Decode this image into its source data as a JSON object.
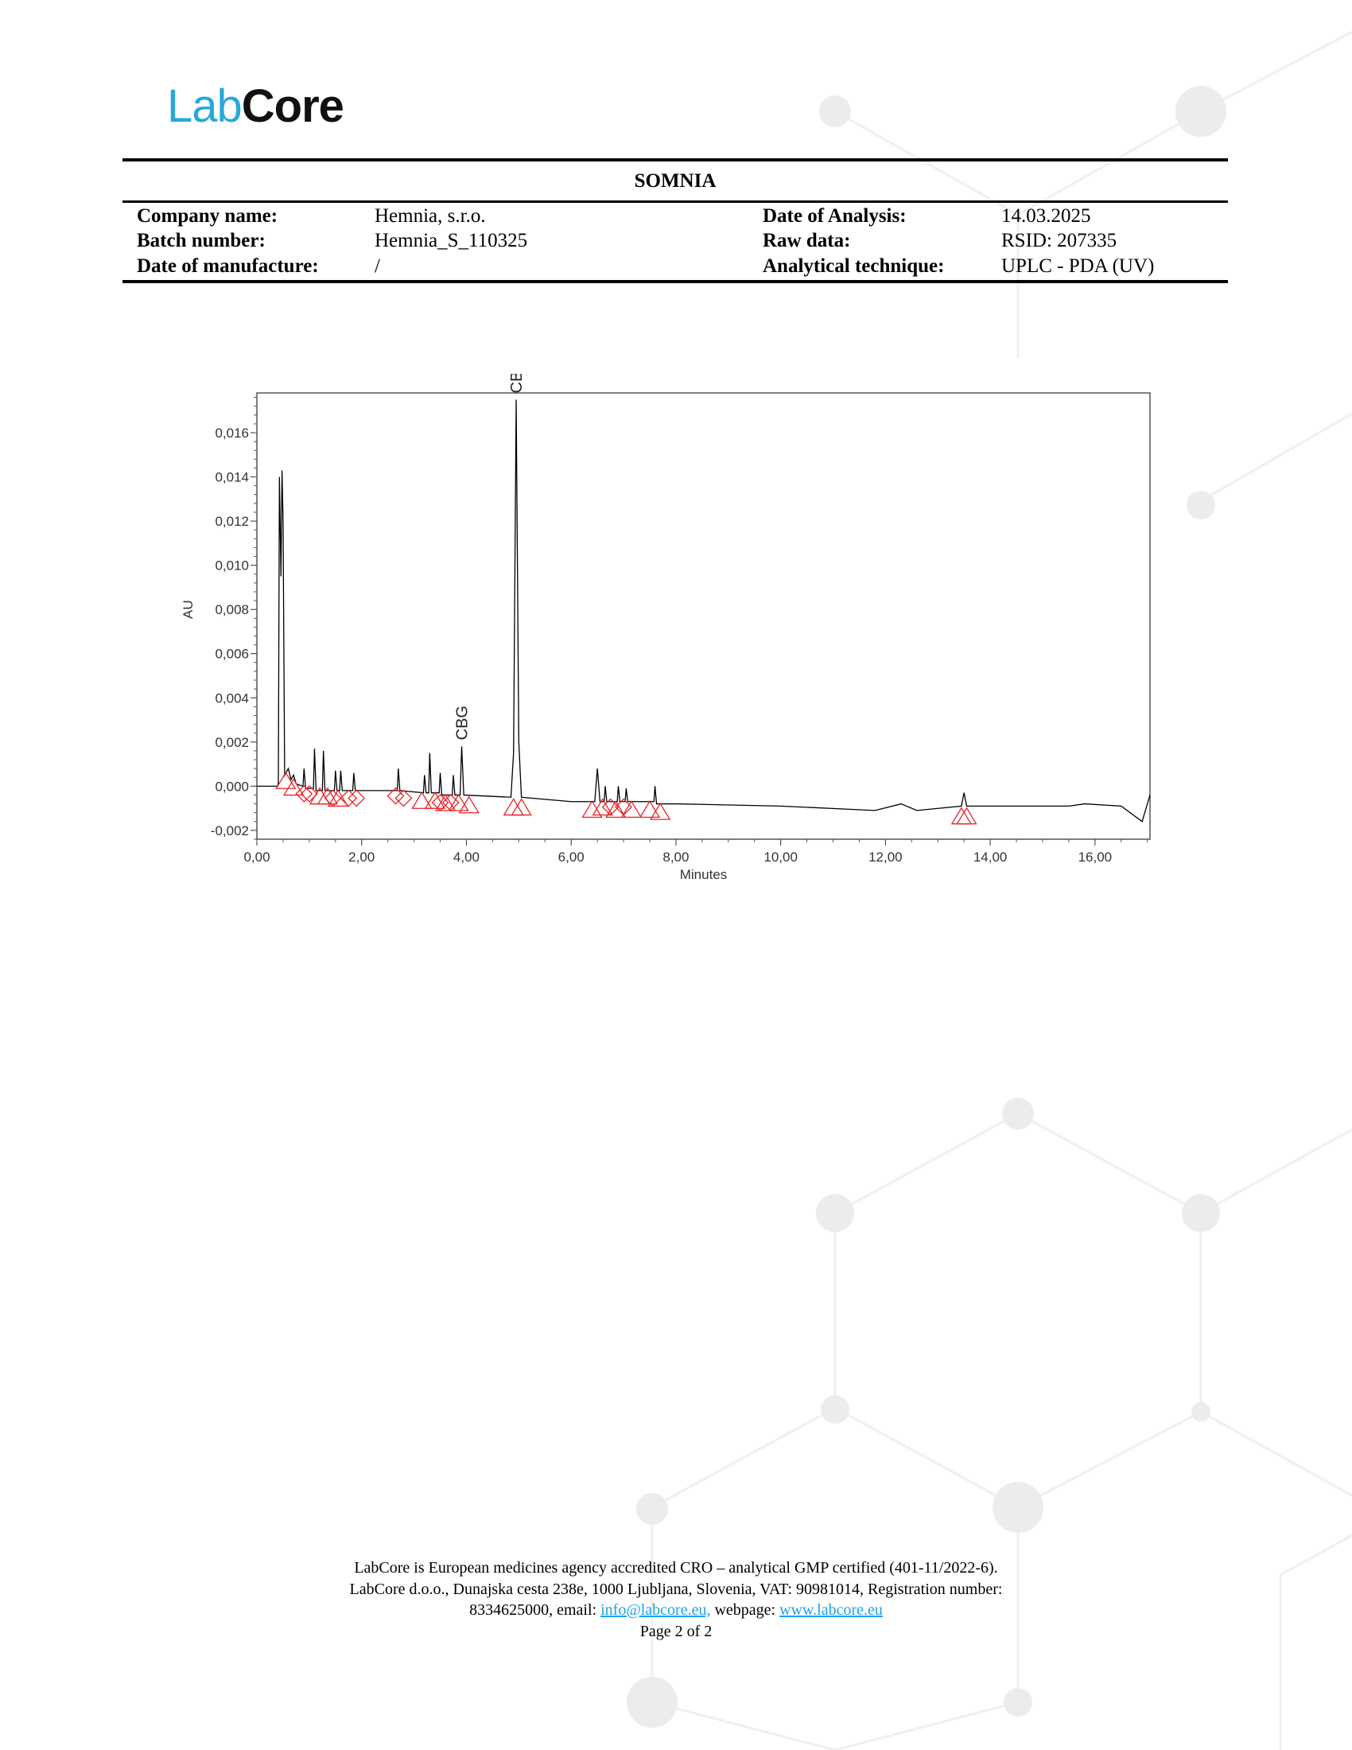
{
  "logo": {
    "text_lab": "Lab",
    "text_core": "Core"
  },
  "header": {
    "title": "SOMNIA",
    "rows": [
      {
        "label": "Company name:",
        "value": "Hemnia, s.r.o.",
        "label2": "Date of Analysis:",
        "value2": "14.03.2025"
      },
      {
        "label": "Batch number:",
        "value": "Hemnia_S_110325",
        "label2": "Raw data:",
        "value2": "RSID: 207335"
      },
      {
        "label": "Date of manufacture:",
        "value": "/",
        "label2": "Analytical technique:",
        "value2": "UPLC - PDA (UV)"
      }
    ]
  },
  "chart_data": {
    "type": "line",
    "xlabel": "Minutes",
    "ylabel": "AU",
    "xlim": [
      0,
      17.05
    ],
    "ylim": [
      -0.0024,
      0.0178
    ],
    "x_ticks": [
      "0,00",
      "2,00",
      "4,00",
      "6,00",
      "8,00",
      "10,00",
      "12,00",
      "14,00",
      "16,00"
    ],
    "y_ticks": [
      "-0,002",
      "0,000",
      "0,002",
      "0,004",
      "0,006",
      "0,008",
      "0,010",
      "0,012",
      "0,014",
      "0,016"
    ],
    "grid": false,
    "line_color": "#000000",
    "marker_color": "#e8232a",
    "trace": [
      [
        0,
        0
      ],
      [
        0.4,
        0
      ],
      [
        0.41,
        0.0002
      ],
      [
        0.43,
        0.014
      ],
      [
        0.46,
        0.0095
      ],
      [
        0.48,
        0.0143
      ],
      [
        0.5,
        0.012
      ],
      [
        0.53,
        0.0005
      ],
      [
        0.6,
        0.0008
      ],
      [
        0.65,
        0.0003
      ],
      [
        0.7,
        0.0005
      ],
      [
        0.75,
        0.0001
      ],
      [
        0.88,
        0.0
      ],
      [
        0.9,
        0.0008
      ],
      [
        0.93,
        -0.0001
      ],
      [
        1.08,
        -0.0001
      ],
      [
        1.1,
        0.0017
      ],
      [
        1.13,
        -0.0002
      ],
      [
        1.25,
        -0.0002
      ],
      [
        1.27,
        0.0016
      ],
      [
        1.3,
        -0.0002
      ],
      [
        1.48,
        -0.0002
      ],
      [
        1.5,
        0.0007
      ],
      [
        1.53,
        -0.0002
      ],
      [
        1.58,
        -0.0002
      ],
      [
        1.6,
        0.0007
      ],
      [
        1.63,
        -0.0002
      ],
      [
        1.83,
        -0.0002
      ],
      [
        1.85,
        0.0006
      ],
      [
        1.88,
        -0.0002
      ],
      [
        2.68,
        -0.0002
      ],
      [
        2.7,
        0.0008
      ],
      [
        2.73,
        -0.0002
      ],
      [
        3.18,
        -0.0003
      ],
      [
        3.2,
        0.0005
      ],
      [
        3.23,
        -0.0003
      ],
      [
        3.28,
        -0.0003
      ],
      [
        3.3,
        0.0015
      ],
      [
        3.33,
        -0.0003
      ],
      [
        3.48,
        -0.0003
      ],
      [
        3.5,
        0.0006
      ],
      [
        3.53,
        -0.0004
      ],
      [
        3.73,
        -0.0004
      ],
      [
        3.75,
        0.0005
      ],
      [
        3.78,
        -0.0004
      ],
      [
        3.88,
        -0.0004
      ],
      [
        3.91,
        0.0018
      ],
      [
        3.95,
        -0.0004
      ],
      [
        4.85,
        -0.0005
      ],
      [
        4.9,
        0.0015
      ],
      [
        4.95,
        0.0175
      ],
      [
        5.0,
        0.002
      ],
      [
        5.05,
        -0.0005
      ],
      [
        6.0,
        -0.0007
      ],
      [
        6.45,
        -0.0007
      ],
      [
        6.5,
        0.0008
      ],
      [
        6.55,
        -0.0007
      ],
      [
        6.63,
        -0.0007
      ],
      [
        6.65,
        0.0
      ],
      [
        6.68,
        -0.0007
      ],
      [
        6.88,
        -0.0007
      ],
      [
        6.9,
        0.0
      ],
      [
        6.93,
        -0.0007
      ],
      [
        7.03,
        -0.0007
      ],
      [
        7.05,
        -0.0001
      ],
      [
        7.08,
        -0.0007
      ],
      [
        7.58,
        -0.0007
      ],
      [
        7.6,
        0.0
      ],
      [
        7.63,
        -0.0008
      ],
      [
        8,
        -0.0008
      ],
      [
        10,
        -0.0009
      ],
      [
        11.8,
        -0.0011
      ],
      [
        12.3,
        -0.0008
      ],
      [
        12.6,
        -0.0011
      ],
      [
        13.45,
        -0.0009
      ],
      [
        13.5,
        -0.0003
      ],
      [
        13.55,
        -0.0009
      ],
      [
        15.5,
        -0.0009
      ],
      [
        15.8,
        -0.0008
      ],
      [
        16.5,
        -0.0009
      ],
      [
        16.9,
        -0.0016
      ],
      [
        17.05,
        -0.0004
      ]
    ],
    "triangles": [
      [
        0.55,
        0.0004
      ],
      [
        0.7,
        0.0001
      ],
      [
        1.2,
        -0.0003
      ],
      [
        1.35,
        -0.0003
      ],
      [
        1.55,
        -0.0004
      ],
      [
        3.15,
        -0.0005
      ],
      [
        3.4,
        -0.0005
      ],
      [
        3.6,
        -0.0006
      ],
      [
        3.85,
        -0.0006
      ],
      [
        4.05,
        -0.0007
      ],
      [
        4.9,
        -0.0008
      ],
      [
        5.05,
        -0.0008
      ],
      [
        6.4,
        -0.0009
      ],
      [
        6.6,
        -0.0008
      ],
      [
        6.85,
        -0.0009
      ],
      [
        7.15,
        -0.0009
      ],
      [
        7.5,
        -0.0009
      ],
      [
        7.7,
        -0.001
      ],
      [
        13.45,
        -0.0012
      ],
      [
        13.55,
        -0.0012
      ]
    ],
    "diamonds": [
      [
        0.9,
        -0.0002
      ],
      [
        1.0,
        -0.0002
      ],
      [
        1.45,
        -0.0004
      ],
      [
        1.75,
        -0.0004
      ],
      [
        1.9,
        -0.0004
      ],
      [
        2.65,
        -0.0003
      ],
      [
        2.8,
        -0.0004
      ],
      [
        3.5,
        -0.0006
      ],
      [
        3.7,
        -0.0006
      ],
      [
        6.75,
        -0.0008
      ],
      [
        7.0,
        -0.0008
      ]
    ],
    "annotations": [
      {
        "text": "CBG",
        "x": 3.91,
        "y": 0.0018
      },
      {
        "text": "CBGA",
        "x": 4.95,
        "y": 0.0175
      }
    ]
  },
  "footer": {
    "line1": "LabCore is European medicines agency accredited CRO – analytical GMP certified (401-11/2022-6).",
    "line2": "LabCore d.o.o., Dunajska cesta 238e, 1000 Ljubljana, Slovenia, VAT: 90981014, Registration number:",
    "line3_prefix": "8334625000, email:",
    "email": "info@labcore.eu,",
    "webpage_label": "webpage:",
    "webpage": "www.labcore.eu",
    "page": "Page 2 of 2"
  }
}
